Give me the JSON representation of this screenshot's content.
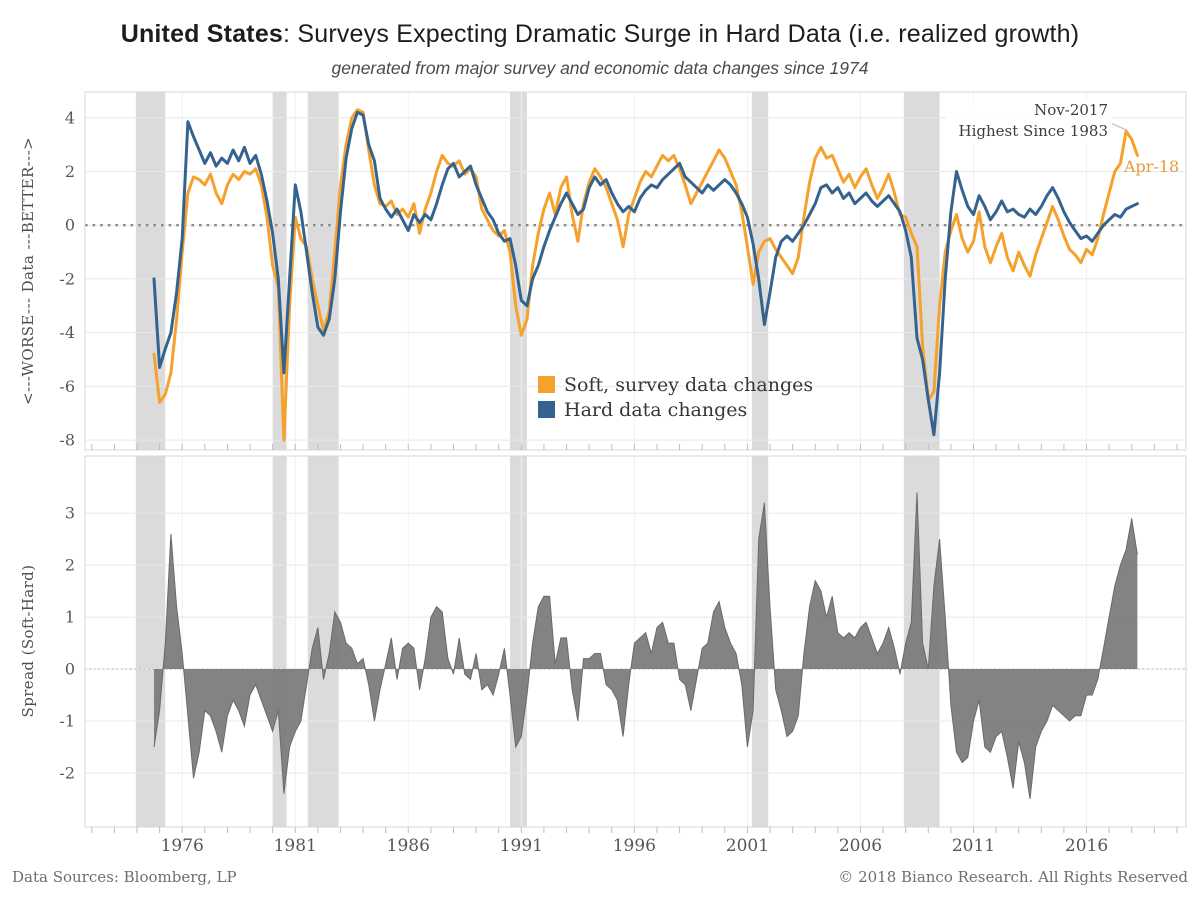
{
  "header": {
    "title_bold": "United States",
    "title_rest": ": Surveys Expecting Dramatic Surge in Hard Data (i.e. realized growth)",
    "subtitle": "generated from major survey and economic data changes since 1974"
  },
  "footer": {
    "left": "Data Sources: Bloomberg, LP",
    "right": "© 2018 Bianco Research. All Rights Reserved"
  },
  "annotations": {
    "peak_line1": "Nov-2017",
    "peak_line2": "Highest Since 1983",
    "peak_x": 2017.92,
    "peak_y": 3.5,
    "end_label": "Apr-18"
  },
  "legend": [
    {
      "label": "Soft, survey data changes",
      "color": "#F5A12B"
    },
    {
      "label": "Hard data changes",
      "color": "#35638F"
    }
  ],
  "colors": {
    "soft": "#F5A12B",
    "hard": "#35638F",
    "spread_fill": "#7C7C7C",
    "spread_edge": "#6A6A6A",
    "recession_band": "#DBDBDB",
    "grid": "#E8E8E8",
    "vgrid": "#F1F1F1",
    "zero_top": "#8A8A8A",
    "zero_bottom": "#B5B5B5",
    "border": "#D7D7D7",
    "tick": "#BDBDBD",
    "tick_text": "#575757",
    "annotation_leader": "#BDBDBD",
    "end_label_color": "#E9993B"
  },
  "chart_data": {
    "type": "line",
    "x_start": 1974.75,
    "x_step": 0.25,
    "xlim": [
      1971.7,
      2020.4
    ],
    "x_ticks": [
      1976,
      1981,
      1986,
      1991,
      1996,
      2001,
      2006,
      2011,
      2016
    ],
    "minor_tick_years": {
      "from": 1972,
      "to": 2020
    },
    "recession_bands": [
      [
        1973.95,
        1975.25
      ],
      [
        1980.0,
        1980.62
      ],
      [
        1981.55,
        1982.92
      ],
      [
        1990.5,
        1991.25
      ],
      [
        2001.2,
        2001.92
      ],
      [
        2007.92,
        2009.5
      ]
    ],
    "panels": [
      {
        "name": "data-changes",
        "ylabel": "<---WORSE---  Data  ---BETTER--->",
        "ylim": [
          -8.37,
          4.96
        ],
        "yticks": [
          4,
          2,
          0,
          -2,
          -4,
          -6,
          -8
        ],
        "zero_line": "dotted",
        "series": [
          {
            "name": "Soft, survey data changes",
            "color": "#F5A12B",
            "values": [
              -4.8,
              -6.6,
              -6.3,
              -5.5,
              -3.5,
              -1.0,
              1.2,
              1.8,
              1.7,
              1.5,
              1.9,
              1.2,
              0.8,
              1.5,
              1.9,
              1.7,
              2.0,
              1.9,
              2.1,
              1.5,
              0.3,
              -1.5,
              -2.3,
              -8.0,
              -3.0,
              0.3,
              -0.5,
              -0.8,
              -2.0,
              -3.0,
              -3.9,
              -3.2,
              -1.0,
              1.5,
              3.0,
              4.0,
              4.3,
              4.2,
              2.8,
              1.5,
              0.8,
              0.7,
              0.9,
              0.4,
              0.6,
              0.3,
              0.8,
              -0.3,
              0.6,
              1.2,
              2.0,
              2.6,
              2.3,
              2.2,
              2.4,
              1.9,
              2.1,
              1.8,
              0.6,
              0.2,
              -0.2,
              -0.4,
              -0.2,
              -1.0,
              -3.0,
              -4.1,
              -3.5,
              -1.5,
              -0.3,
              0.6,
              1.2,
              0.4,
              1.4,
              1.8,
              0.4,
              -0.6,
              0.8,
              1.6,
              2.1,
              1.8,
              1.4,
              0.8,
              0.2,
              -0.8,
              0.4,
              1.0,
              1.6,
              2.0,
              1.8,
              2.2,
              2.6,
              2.4,
              2.6,
              2.1,
              1.5,
              0.8,
              1.2,
              1.6,
              2.0,
              2.4,
              2.8,
              2.5,
              2.0,
              1.5,
              0.5,
              -0.8,
              -2.2,
              -1.0,
              -0.6,
              -0.5,
              -0.9,
              -1.2,
              -1.5,
              -1.8,
              -1.2,
              0.3,
              1.6,
              2.5,
              2.9,
              2.5,
              2.6,
              2.1,
              1.6,
              1.9,
              1.4,
              1.8,
              2.1,
              1.5,
              1.0,
              1.4,
              1.9,
              1.2,
              0.4,
              0.3,
              -0.3,
              -0.8,
              -4.5,
              -6.5,
              -6.2,
              -3.0,
              -1.0,
              -0.2,
              0.4,
              -0.5,
              -1.0,
              -0.6,
              0.5,
              -0.8,
              -1.4,
              -0.8,
              -0.3,
              -1.2,
              -1.7,
              -1.0,
              -1.5,
              -1.9,
              -1.1,
              -0.5,
              0.1,
              0.7,
              0.2,
              -0.4,
              -0.9,
              -1.1,
              -1.4,
              -0.9,
              -1.1,
              -0.5,
              0.4,
              1.2,
              2.0,
              2.3,
              3.5,
              3.2,
              2.6
            ]
          },
          {
            "name": "Hard data changes",
            "color": "#35638F",
            "values": [
              -2.0,
              -5.3,
              -4.6,
              -4.0,
              -2.5,
              -0.5,
              3.85,
              3.3,
              2.8,
              2.3,
              2.7,
              2.2,
              2.5,
              2.3,
              2.8,
              2.4,
              2.9,
              2.3,
              2.6,
              1.9,
              0.9,
              -0.3,
              -2.0,
              -5.5,
              -2.0,
              1.5,
              0.5,
              -1.0,
              -2.5,
              -3.8,
              -4.1,
              -3.5,
              -2.0,
              0.5,
              2.5,
              3.6,
              4.2,
              4.1,
              3.0,
              2.4,
              1.0,
              0.6,
              0.3,
              0.6,
              0.2,
              -0.2,
              0.4,
              0.1,
              0.4,
              0.2,
              0.8,
              1.5,
              2.1,
              2.3,
              1.8,
              2.0,
              2.2,
              1.5,
              1.0,
              0.5,
              0.2,
              -0.3,
              -0.6,
              -0.5,
              -1.5,
              -2.8,
              -3.0,
              -2.0,
              -1.5,
              -0.8,
              -0.2,
              0.3,
              0.8,
              1.2,
              0.8,
              0.4,
              0.6,
              1.4,
              1.8,
              1.5,
              1.7,
              1.2,
              0.8,
              0.5,
              0.7,
              0.5,
              1.0,
              1.3,
              1.5,
              1.4,
              1.7,
              1.9,
              2.1,
              2.3,
              1.8,
              1.6,
              1.4,
              1.2,
              1.5,
              1.3,
              1.5,
              1.7,
              1.5,
              1.2,
              0.8,
              0.3,
              -0.7,
              -2.0,
              -3.7,
              -2.5,
              -1.2,
              -0.6,
              -0.4,
              -0.6,
              -0.3,
              0.0,
              0.4,
              0.8,
              1.4,
              1.5,
              1.2,
              1.4,
              1.0,
              1.2,
              0.8,
              1.0,
              1.2,
              0.9,
              0.7,
              0.9,
              1.1,
              0.8,
              0.5,
              -0.2,
              -1.2,
              -4.2,
              -5.0,
              -6.5,
              -7.8,
              -5.5,
              -2.0,
              0.5,
              2.0,
              1.3,
              0.7,
              0.4,
              1.1,
              0.7,
              0.2,
              0.5,
              0.9,
              0.5,
              0.6,
              0.4,
              0.3,
              0.6,
              0.4,
              0.7,
              1.1,
              1.4,
              1.0,
              0.5,
              0.1,
              -0.2,
              -0.5,
              -0.4,
              -0.6,
              -0.3,
              0.0,
              0.2,
              0.4,
              0.3,
              0.6,
              0.7,
              0.8
            ]
          }
        ]
      },
      {
        "name": "spread",
        "ylabel": "Spread (Soft-Hard)",
        "ylim": [
          -3.04,
          4.1
        ],
        "yticks": [
          3,
          2,
          1,
          0,
          -1,
          -2
        ],
        "zero_line": "dotted",
        "series": [
          {
            "name": "Spread (Soft-Hard)",
            "type": "area",
            "color": "#7C7C7C",
            "values": [
              -1.5,
              -0.8,
              0.5,
              2.6,
              1.2,
              0.3,
              -0.9,
              -2.1,
              -1.6,
              -0.8,
              -0.9,
              -1.2,
              -1.6,
              -0.9,
              -0.6,
              -0.8,
              -1.1,
              -0.5,
              -0.3,
              -0.6,
              -0.9,
              -1.2,
              -0.8,
              -2.4,
              -1.5,
              -1.2,
              -1.0,
              -0.3,
              0.4,
              0.8,
              -0.2,
              0.3,
              1.1,
              0.9,
              0.5,
              0.4,
              0.1,
              0.2,
              -0.3,
              -1.0,
              -0.4,
              0.1,
              0.6,
              -0.2,
              0.4,
              0.5,
              0.4,
              -0.4,
              0.2,
              1.0,
              1.2,
              1.1,
              0.2,
              -0.1,
              0.6,
              -0.1,
              -0.2,
              0.3,
              -0.4,
              -0.3,
              -0.5,
              -0.1,
              0.4,
              -0.5,
              -1.5,
              -1.3,
              -0.5,
              0.5,
              1.2,
              1.4,
              1.4,
              0.1,
              0.6,
              0.6,
              -0.4,
              -1.0,
              0.2,
              0.2,
              0.3,
              0.3,
              -0.3,
              -0.4,
              -0.6,
              -1.3,
              -0.3,
              0.5,
              0.6,
              0.7,
              0.3,
              0.8,
              0.9,
              0.5,
              0.5,
              -0.2,
              -0.3,
              -0.8,
              -0.2,
              0.4,
              0.5,
              1.1,
              1.3,
              0.8,
              0.5,
              0.3,
              -0.3,
              -1.5,
              -0.8,
              2.5,
              3.2,
              1.2,
              -0.4,
              -0.8,
              -1.3,
              -1.2,
              -0.9,
              0.3,
              1.2,
              1.7,
              1.5,
              1.0,
              1.4,
              0.7,
              0.6,
              0.7,
              0.6,
              0.8,
              0.9,
              0.6,
              0.3,
              0.5,
              0.8,
              0.4,
              -0.1,
              0.5,
              0.9,
              3.4,
              0.5,
              0.0,
              1.6,
              2.5,
              1.0,
              -0.7,
              -1.6,
              -1.8,
              -1.7,
              -1.0,
              -0.6,
              -1.5,
              -1.6,
              -1.3,
              -1.2,
              -1.7,
              -2.3,
              -1.4,
              -1.8,
              -2.5,
              -1.5,
              -1.2,
              -1.0,
              -0.7,
              -0.8,
              -0.9,
              -1.0,
              -0.9,
              -0.9,
              -0.5,
              -0.5,
              -0.2,
              0.4,
              1.0,
              1.6,
              2.0,
              2.3,
              2.9,
              2.2
            ]
          }
        ]
      }
    ]
  }
}
